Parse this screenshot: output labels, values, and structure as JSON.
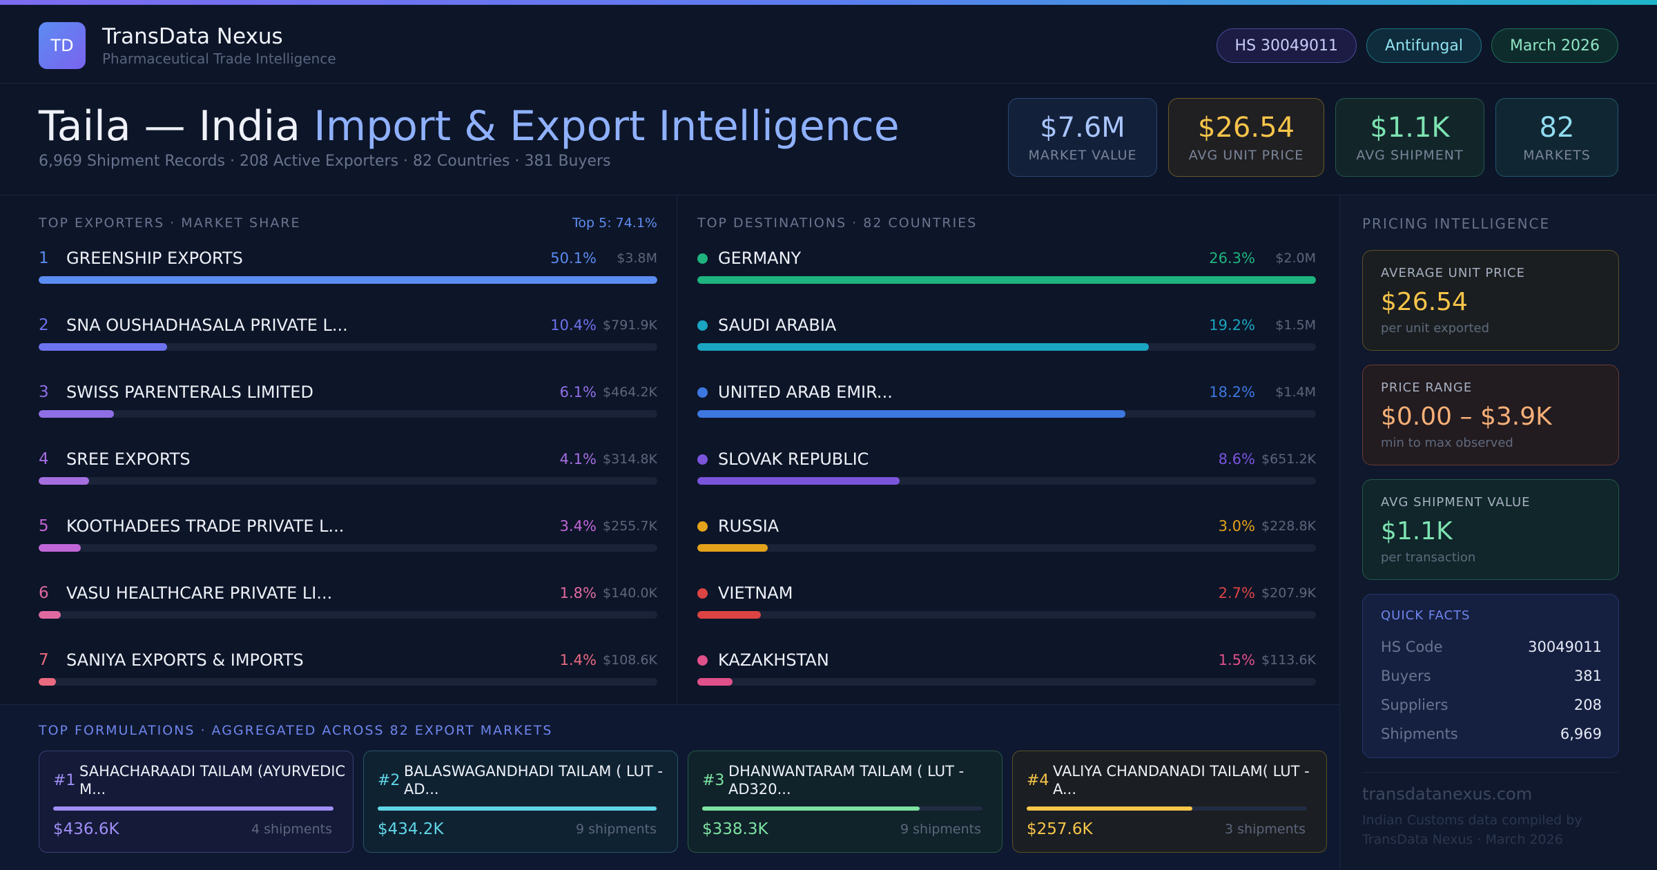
{
  "header": {
    "logo_text": "TD",
    "brand_name": "TransData Nexus",
    "brand_sub": "Pharmaceutical Trade Intelligence",
    "tags": [
      "HS 30049011",
      "Antifungal",
      "March 2026"
    ]
  },
  "title": {
    "main": "Taila — India ",
    "accent": "Import & Export Intelligence",
    "subtitle": "6,969 Shipment Records · 208 Active Exporters · 82 Countries · 381 Buyers"
  },
  "kpis": [
    {
      "value": "$7.6M",
      "label": "MARKET VALUE"
    },
    {
      "value": "$26.54",
      "label": "AVG UNIT PRICE"
    },
    {
      "value": "$1.1K",
      "label": "AVG SHIPMENT"
    },
    {
      "value": "82",
      "label": "MARKETS"
    }
  ],
  "exporters": {
    "title": "TOP EXPORTERS · MARKET SHARE",
    "top5": "Top 5: 74.1%",
    "rows": [
      {
        "rank": "1",
        "name": "GREENSHIP EXPORTS",
        "pct": "50.1%",
        "share": 50.1,
        "value": "$3.8M",
        "color": "#5b8cf2"
      },
      {
        "rank": "2",
        "name": "SNA OUSHADHASALA PRIVATE L...",
        "pct": "10.4%",
        "share": 10.4,
        "value": "$791.9K",
        "color": "#6d73ee"
      },
      {
        "rank": "3",
        "name": "SWISS PARENTERALS LIMITED",
        "pct": "6.1%",
        "share": 6.1,
        "value": "$464.2K",
        "color": "#8f6fe6"
      },
      {
        "rank": "4",
        "name": "SREE EXPORTS",
        "pct": "4.1%",
        "share": 4.1,
        "value": "$314.8K",
        "color": "#a46ee0"
      },
      {
        "rank": "5",
        "name": "KOOTHADEES TRADE PRIVATE L...",
        "pct": "3.4%",
        "share": 3.4,
        "value": "$255.7K",
        "color": "#c166d8"
      },
      {
        "rank": "6",
        "name": "VASU HEALTHCARE PRIVATE LI...",
        "pct": "1.8%",
        "share": 1.8,
        "value": "$140.0K",
        "color": "#e06aa0"
      },
      {
        "rank": "7",
        "name": "SANIYA EXPORTS & IMPORTS",
        "pct": "1.4%",
        "share": 1.4,
        "value": "$108.6K",
        "color": "#ea6a80"
      }
    ]
  },
  "destinations": {
    "title": "TOP DESTINATIONS · 82 COUNTRIES",
    "rows": [
      {
        "name": "GERMANY",
        "pct": "26.3%",
        "share": 26.3,
        "value": "$2.0M",
        "color": "#1fb47f"
      },
      {
        "name": "SAUDI ARABIA",
        "pct": "19.2%",
        "share": 19.2,
        "value": "$1.5M",
        "color": "#1aa5c2"
      },
      {
        "name": "UNITED ARAB EMIR...",
        "pct": "18.2%",
        "share": 18.2,
        "value": "$1.4M",
        "color": "#3d78e0"
      },
      {
        "name": "SLOVAK REPUBLIC",
        "pct": "8.6%",
        "share": 8.6,
        "value": "$651.2K",
        "color": "#7a55dc"
      },
      {
        "name": "RUSSIA",
        "pct": "3.0%",
        "share": 3.0,
        "value": "$228.8K",
        "color": "#e3a21a"
      },
      {
        "name": "VIETNAM",
        "pct": "2.7%",
        "share": 2.7,
        "value": "$207.9K",
        "color": "#dc4444"
      },
      {
        "name": "KAZAKHSTAN",
        "pct": "1.5%",
        "share": 1.5,
        "value": "$113.6K",
        "color": "#e0508a"
      }
    ]
  },
  "formulations": {
    "title": "TOP FORMULATIONS · AGGREGATED ACROSS 82 EXPORT MARKETS",
    "cards": [
      {
        "num": "#1",
        "name": "SAHACHARAADI TAILAM (AYURVEDIC M...",
        "value": "$436.6K",
        "shipments": "4 shipments",
        "share": 1.0,
        "color": "#a08ef5"
      },
      {
        "num": "#2",
        "name": "BALASWAGANDHADI TAILAM ( LUT - AD...",
        "value": "$434.2K",
        "shipments": "9 shipments",
        "share": 0.994,
        "color": "#5fd6e6"
      },
      {
        "num": "#3",
        "name": "DHANWANTARAM TAILAM ( LUT - AD320...",
        "value": "$338.3K",
        "shipments": "9 shipments",
        "share": 0.775,
        "color": "#7de3a1"
      },
      {
        "num": "#4",
        "name": "VALIYA CHANDANADI TAILAM( LUT - A...",
        "value": "$257.6K",
        "shipments": "3 shipments",
        "share": 0.59,
        "color": "#f7c54a"
      }
    ]
  },
  "sidebar": {
    "title": "PRICING INTELLIGENCE",
    "cards": [
      {
        "label": "AVERAGE UNIT PRICE",
        "value": "$26.54",
        "note": "per unit exported"
      },
      {
        "label": "PRICE RANGE",
        "value": "$0.00 – $3.9K",
        "note": "min to max observed"
      },
      {
        "label": "AVG SHIPMENT VALUE",
        "value": "$1.1K",
        "note": "per transaction"
      }
    ],
    "facts_title": "QUICK FACTS",
    "facts": [
      {
        "k": "HS Code",
        "v": "30049011"
      },
      {
        "k": "Buyers",
        "v": "381"
      },
      {
        "k": "Suppliers",
        "v": "208"
      },
      {
        "k": "Shipments",
        "v": "6,969"
      }
    ],
    "footer_site": "transdatanexus.com",
    "footer_note": "Indian Customs data compiled by TransData Nexus · March 2026"
  }
}
